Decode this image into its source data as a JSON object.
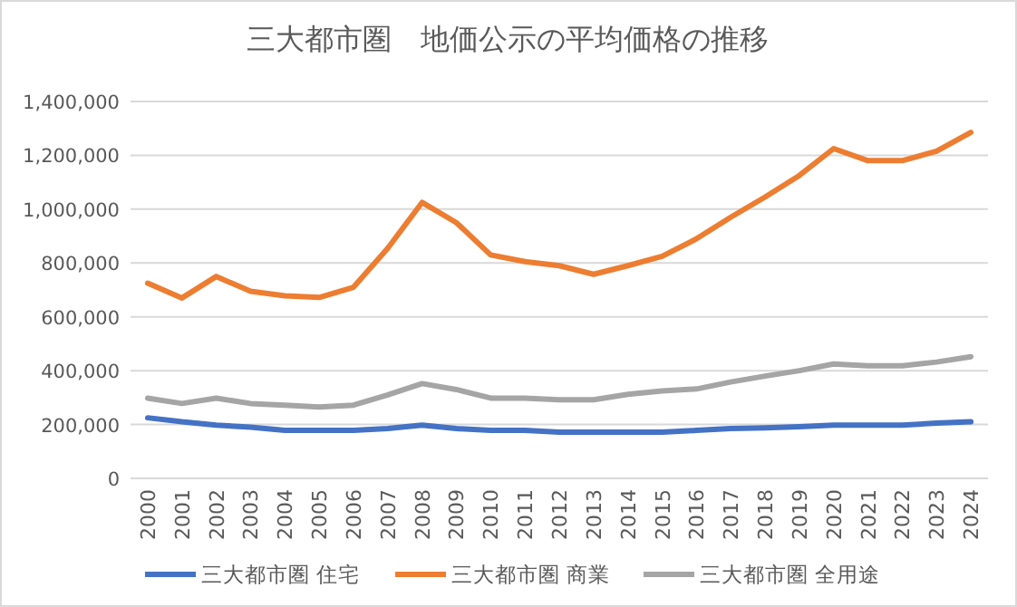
{
  "chart_data": {
    "type": "line",
    "title": "三大都市圏　地価公示の平均価格の推移",
    "categories": [
      "2000",
      "2001",
      "2002",
      "2003",
      "2004",
      "2005",
      "2006",
      "2007",
      "2008",
      "2009",
      "2010",
      "2011",
      "2012",
      "2013",
      "2014",
      "2015",
      "2016",
      "2017",
      "2018",
      "2019",
      "2020",
      "2021",
      "2022",
      "2023",
      "2024"
    ],
    "series": [
      {
        "name": "三大都市圏 住宅",
        "color": "#4472c4",
        "values": [
          225000,
          210000,
          198000,
          190000,
          178000,
          178000,
          178000,
          185000,
          198000,
          185000,
          178000,
          178000,
          172000,
          172000,
          172000,
          172000,
          178000,
          185000,
          188000,
          192000,
          198000,
          198000,
          198000,
          205000,
          210000
        ]
      },
      {
        "name": "三大都市圏 商業",
        "color": "#ed7d31",
        "values": [
          725000,
          670000,
          750000,
          695000,
          678000,
          672000,
          710000,
          855000,
          1025000,
          950000,
          830000,
          805000,
          790000,
          758000,
          790000,
          825000,
          890000,
          970000,
          1045000,
          1125000,
          1225000,
          1180000,
          1180000,
          1215000,
          1285000
        ]
      },
      {
        "name": "三大都市圏 全用途",
        "color": "#a5a5a5",
        "values": [
          298000,
          278000,
          298000,
          278000,
          272000,
          265000,
          272000,
          310000,
          352000,
          330000,
          298000,
          298000,
          292000,
          292000,
          312000,
          325000,
          332000,
          358000,
          380000,
          400000,
          425000,
          418000,
          418000,
          432000,
          452000
        ]
      }
    ],
    "ylim": [
      0,
      1400000
    ],
    "yticks": [
      {
        "value": 0,
        "label": "0"
      },
      {
        "value": 200000,
        "label": "200,000"
      },
      {
        "value": 400000,
        "label": "400,000"
      },
      {
        "value": 600000,
        "label": "600,000"
      },
      {
        "value": 800000,
        "label": "800,000"
      },
      {
        "value": 1000000,
        "label": "1,000,000"
      },
      {
        "value": 1200000,
        "label": "1,200,000"
      },
      {
        "value": 1400000,
        "label": "1,400,000"
      }
    ],
    "grid": "y",
    "legend": "bottom",
    "marker": "none",
    "line_style": "solid"
  }
}
